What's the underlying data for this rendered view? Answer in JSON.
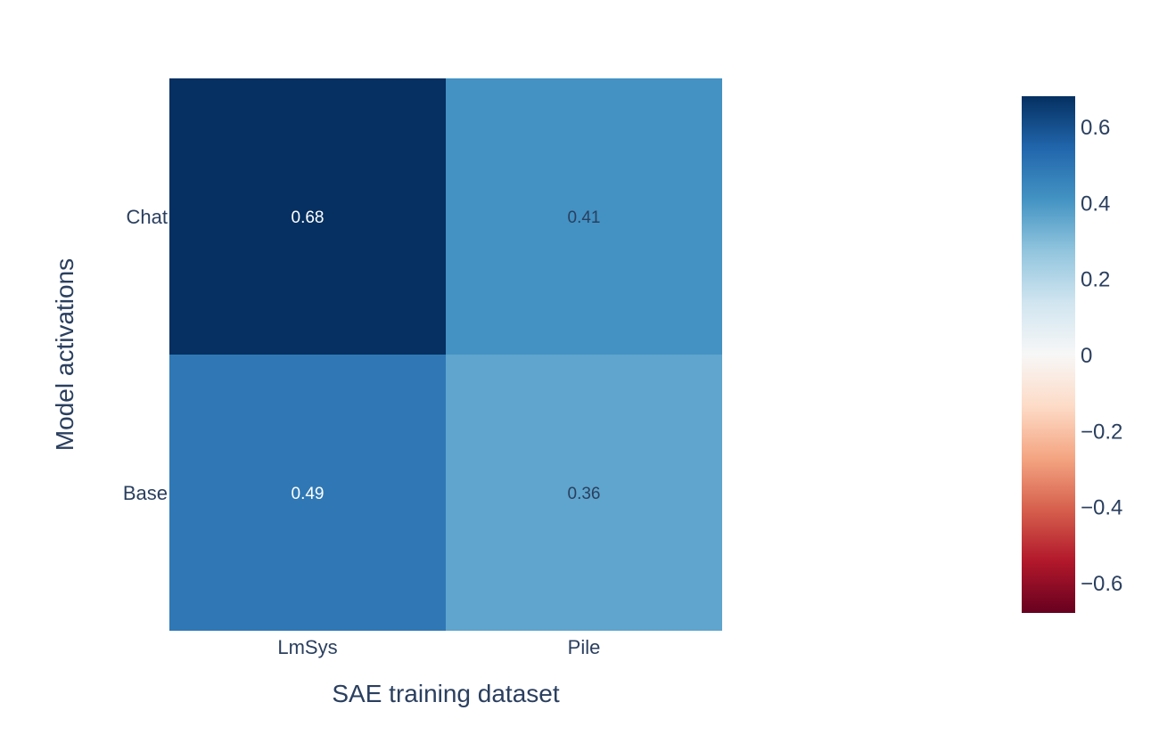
{
  "chart_data": {
    "type": "heatmap",
    "title": "",
    "xlabel": "SAE training dataset",
    "ylabel": "Model activations",
    "x": [
      "LmSys",
      "Pile"
    ],
    "y": [
      "Chat",
      "Base"
    ],
    "z": [
      [
        0.68,
        0.41
      ],
      [
        0.49,
        0.36
      ]
    ],
    "cell_text": [
      [
        "0.68",
        "0.41"
      ],
      [
        "0.49",
        "0.36"
      ]
    ],
    "colorscale": "RdBu",
    "zlim": [
      -0.68,
      0.68
    ],
    "colorbar": {
      "ticks": [
        0.6,
        0.4,
        0.2,
        0,
        -0.2,
        -0.4,
        -0.6
      ],
      "tick_labels": [
        "0.6",
        "0.4",
        "0.2",
        "0",
        "−0.2",
        "−0.4",
        "−0.6"
      ]
    },
    "colors": {
      "stops": [
        [
          0.0,
          "#67001f"
        ],
        [
          0.1,
          "#b2182b"
        ],
        [
          0.2,
          "#d6604d"
        ],
        [
          0.3,
          "#f4a582"
        ],
        [
          0.4,
          "#fddbc7"
        ],
        [
          0.5,
          "#f7f7f7"
        ],
        [
          0.6,
          "#d1e5f0"
        ],
        [
          0.7,
          "#92c5de"
        ],
        [
          0.8,
          "#4393c3"
        ],
        [
          0.9,
          "#2166ac"
        ],
        [
          1.0,
          "#053061"
        ]
      ],
      "text_light": "#ffffff",
      "text_dark": "#2a3f5f"
    }
  }
}
